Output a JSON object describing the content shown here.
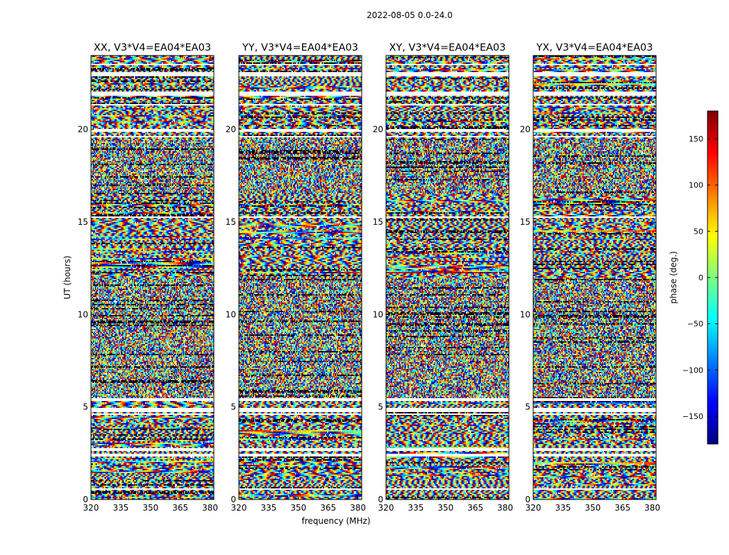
{
  "figure": {
    "suptitle": "2022-08-05 0.0-24.0",
    "xlabel": "frequency (MHz)",
    "ylabel": "UT (hours)"
  },
  "colorbar": {
    "label": "phase (deg.)",
    "colormap": "jet",
    "range": [
      -180,
      180
    ],
    "ticks": [
      150,
      100,
      50,
      0,
      -50,
      -100,
      -150
    ],
    "tick_labels": [
      "150",
      "100",
      "50",
      "0",
      "−50",
      "−100",
      "−150"
    ],
    "colors": [
      "#00007f",
      "#0000ff",
      "#007fff",
      "#00ffff",
      "#7fff7f",
      "#ffff00",
      "#ff7f00",
      "#ff0000",
      "#7f0000"
    ]
  },
  "chart_data": {
    "type": "heatmap",
    "x_range": [
      320,
      381.9
    ],
    "y_range": [
      0,
      24
    ],
    "x_ticks": [
      320,
      335,
      350,
      365,
      380
    ],
    "x_tick_labels": [
      "320",
      "335",
      "350",
      "365",
      "380"
    ],
    "y_ticks": [
      0,
      5,
      10,
      15,
      20
    ],
    "y_tick_labels": [
      "0",
      "5",
      "10",
      "15",
      "20"
    ],
    "panels": [
      {
        "title": "XX, V3*V4=EA04*EA03",
        "seed": 11
      },
      {
        "title": "YY, V3*V4=EA04*EA03",
        "seed": 23
      },
      {
        "title": "XY, V3*V4=EA04*EA03",
        "seed": 37
      },
      {
        "title": "YX, V3*V4=EA04*EA03",
        "seed": 53
      }
    ],
    "flagged_time_ranges_hours": [
      [
        0.55,
        0.62
      ],
      [
        2.35,
        2.45
      ],
      [
        2.65,
        2.78
      ],
      [
        4.55,
        4.62
      ],
      [
        4.75,
        4.95
      ],
      [
        5.35,
        5.45
      ],
      [
        15.2,
        15.3
      ],
      [
        19.55,
        19.65
      ],
      [
        19.9,
        20.05
      ],
      [
        21.3,
        21.4
      ],
      [
        21.85,
        22.05
      ],
      [
        22.9,
        23.1
      ],
      [
        23.45,
        23.55
      ]
    ],
    "noise_dominated_time_ranges_hours": [
      [
        5.5,
        12.0
      ],
      [
        16.5,
        19.5
      ]
    ]
  }
}
